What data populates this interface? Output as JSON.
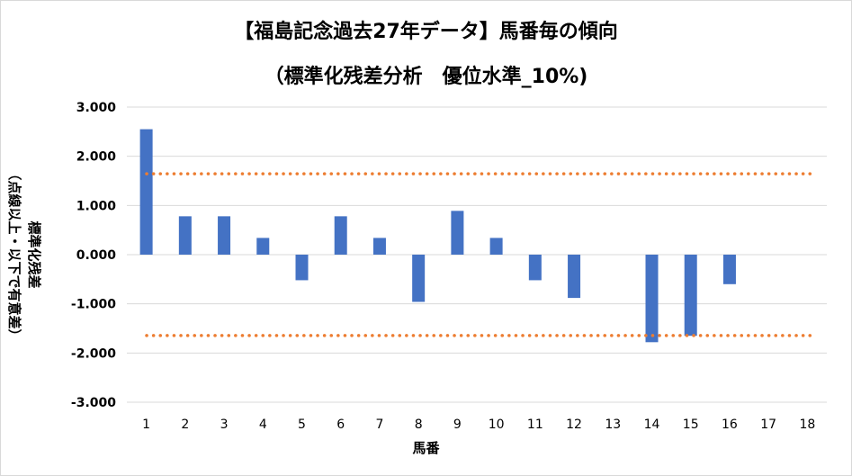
{
  "chart_data": {
    "type": "bar",
    "title": "【福島記念過去27年データ】馬番毎の傾向",
    "subtitle": "（標準化残差分析　優位水準_10%)",
    "ylabel_line1": "標準化残差",
    "ylabel_line2": "（点線以上・以下で有意差）",
    "xlabel": "馬番",
    "categories": [
      "1",
      "2",
      "3",
      "4",
      "5",
      "6",
      "7",
      "8",
      "9",
      "10",
      "11",
      "12",
      "13",
      "14",
      "15",
      "16",
      "17",
      "18"
    ],
    "values": [
      2.55,
      0.78,
      0.78,
      0.34,
      -0.52,
      0.78,
      0.34,
      -0.96,
      0.89,
      0.34,
      -0.52,
      -0.88,
      0.0,
      -1.78,
      -1.65,
      -0.6,
      0.0,
      0.0
    ],
    "ylim": [
      -3.0,
      3.0
    ],
    "yticks": [
      "3.000",
      "2.000",
      "1.000",
      "0.000",
      "-1.000",
      "-2.000",
      "-3.000"
    ],
    "threshold_upper": 1.645,
    "threshold_lower": -1.645,
    "grid": true,
    "colors": {
      "bar": "#4472c4",
      "threshold": "#ed7d31",
      "grid": "#d9d9d9"
    }
  }
}
